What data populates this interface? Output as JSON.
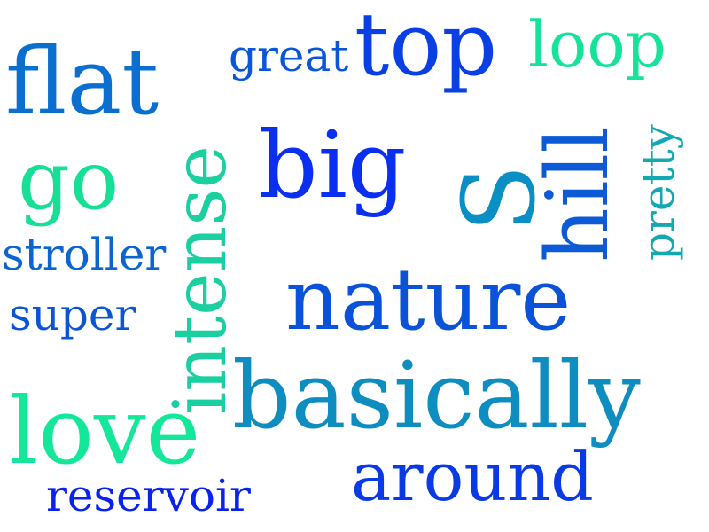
{
  "words": [
    {
      "text": "flat",
      "color": "#0b6fd0"
    },
    {
      "text": "great",
      "color": "#0b56d8"
    },
    {
      "text": "top",
      "color": "#0a3fe6"
    },
    {
      "text": "loop",
      "color": "#16e39a"
    },
    {
      "text": "intense",
      "color": "#1acfa0"
    },
    {
      "text": "go",
      "color": "#18df96"
    },
    {
      "text": "big",
      "color": "#0a2ff0"
    },
    {
      "text": "S",
      "color": "#0a8fc4"
    },
    {
      "text": "hill",
      "color": "#0d5ad6"
    },
    {
      "text": "pretty",
      "color": "#13a9b2"
    },
    {
      "text": "stroller",
      "color": "#0c64cf"
    },
    {
      "text": "nature",
      "color": "#0a52d8"
    },
    {
      "text": "super",
      "color": "#0a55d6"
    },
    {
      "text": "basically",
      "color": "#0e8dc0"
    },
    {
      "text": "love",
      "color": "#14e79a"
    },
    {
      "text": "around",
      "color": "#0a3ae6"
    },
    {
      "text": "reservoir",
      "color": "#0a22ee"
    }
  ]
}
